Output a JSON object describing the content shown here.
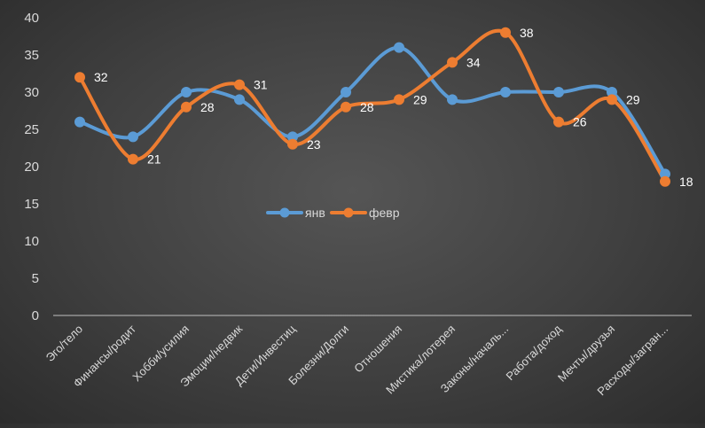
{
  "chart_data": {
    "type": "line",
    "title": "",
    "xlabel": "",
    "ylabel": "",
    "ylim": [
      0,
      40
    ],
    "ytick_step": 5,
    "yticks": [
      "0",
      "5",
      "10",
      "15",
      "20",
      "25",
      "30",
      "35",
      "40"
    ],
    "categories": [
      "Эго/тело",
      "Финансы/родит",
      "Хобби/усилия",
      "Эмоции/недвик",
      "Дети/Инвестиц",
      "Болезни/Долги",
      "Отношения",
      "Мистика/лотерея",
      "Законы/началь...",
      "Работа/доход",
      "Мечты/друзья",
      "Расходы/загран..."
    ],
    "series": [
      {
        "name": "янв",
        "color": "#5b9bd5",
        "values": [
          26,
          24,
          30,
          29,
          24,
          30,
          36,
          29,
          30,
          30,
          30,
          19
        ]
      },
      {
        "name": "февр",
        "color": "#ed7d31",
        "values": [
          32,
          21,
          28,
          31,
          23,
          28,
          29,
          34,
          38,
          26,
          29,
          18
        ],
        "data_labels": [
          "32",
          "21",
          "28",
          "31",
          "23",
          "28",
          "29",
          "34",
          "38",
          "26",
          "29",
          "18"
        ]
      }
    ],
    "grid": false,
    "smooth": true,
    "legend": {
      "position": "center",
      "entries": [
        "янв",
        "февр"
      ]
    },
    "colors": {
      "axis_line": "#bfbfbf",
      "tick_text": "#d9d9d9",
      "data_label_text": "#ffffff"
    }
  }
}
